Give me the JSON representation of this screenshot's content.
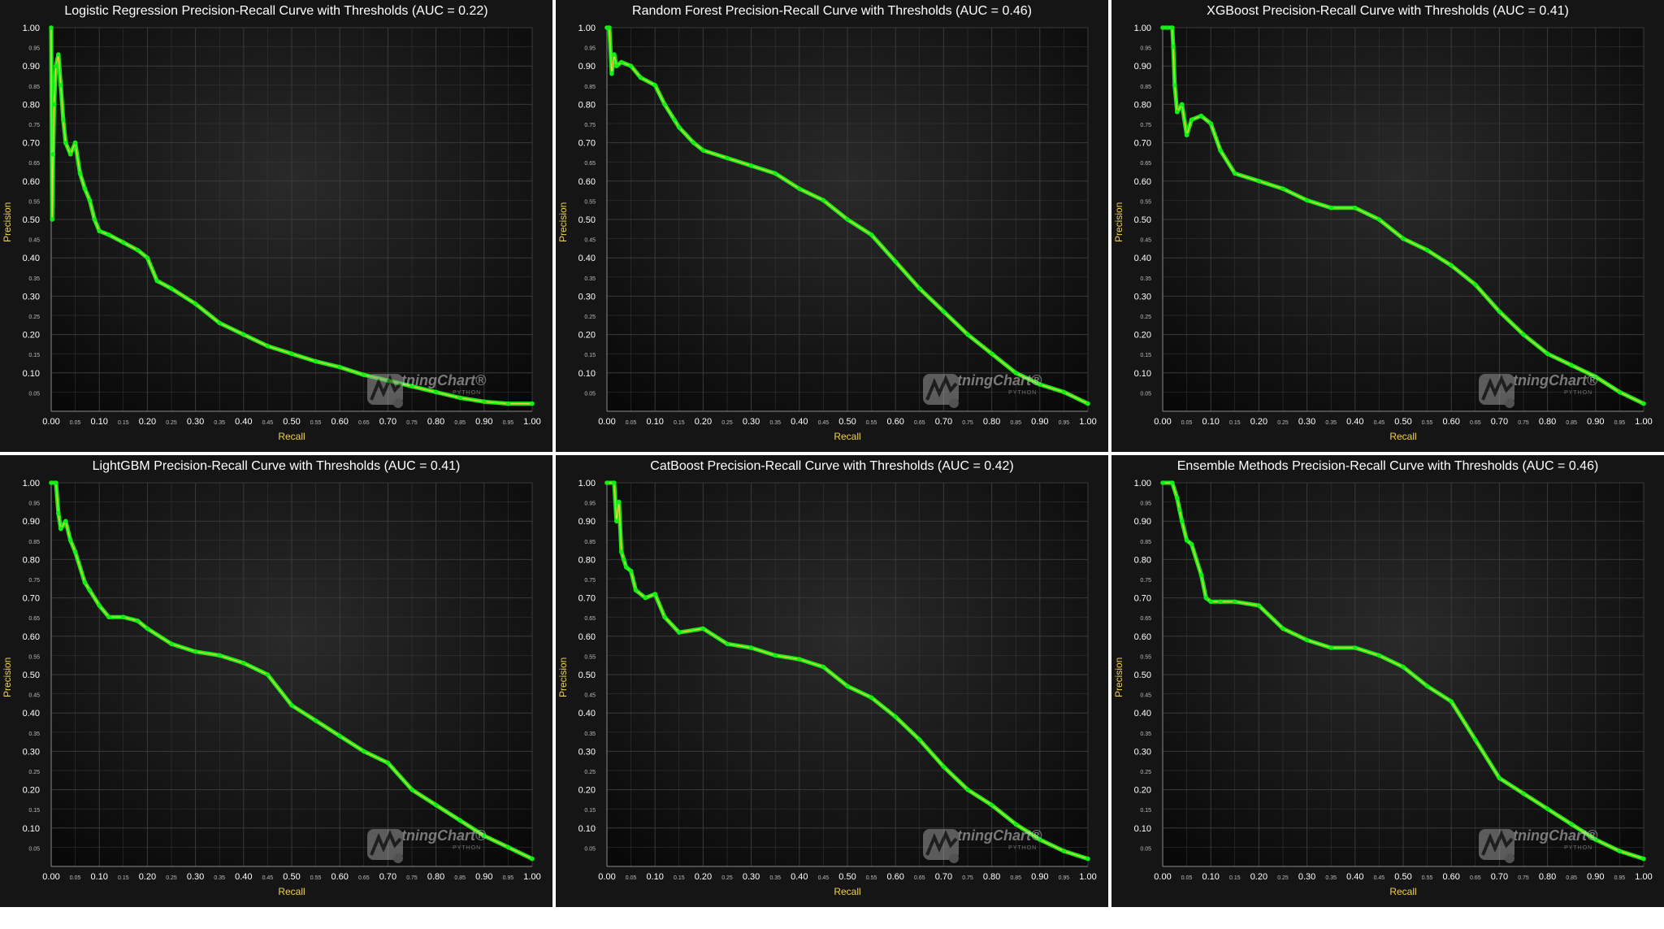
{
  "theme": {
    "background": "#151515",
    "plot_bg": "#0d0d0d",
    "curve_color": "#14ee14",
    "line_color": "#f2d24a",
    "text_color": "#ffffff",
    "axis_color": "#f2d24a"
  },
  "watermark": {
    "text": "LightningChart",
    "mark": "®",
    "sub": "PYTHON",
    "icon": "lightningchart-logo-icon"
  },
  "charts": [
    {
      "title": "Logistic Regression Precision-Recall Curve with Thresholds (AUC = 0.22)",
      "xlabel": "Recall",
      "ylabel": "Precision"
    },
    {
      "title": "Random Forest Precision-Recall Curve with Thresholds (AUC = 0.46)",
      "xlabel": "Recall",
      "ylabel": "Precision"
    },
    {
      "title": "XGBoost Precision-Recall Curve with Thresholds (AUC = 0.41)",
      "xlabel": "Recall",
      "ylabel": "Precision"
    },
    {
      "title": "LightGBM Precision-Recall Curve with Thresholds (AUC = 0.41)",
      "xlabel": "Recall",
      "ylabel": "Precision"
    },
    {
      "title": "CatBoost Precision-Recall Curve with Thresholds (AUC = 0.42)",
      "xlabel": "Recall",
      "ylabel": "Precision"
    },
    {
      "title": "Ensemble Methods Precision-Recall Curve with Thresholds (AUC = 0.46)",
      "xlabel": "Recall",
      "ylabel": "Precision"
    }
  ],
  "chart_data": [
    {
      "type": "line",
      "title": "Logistic Regression Precision-Recall Curve with Thresholds (AUC = 0.22)",
      "xlabel": "Recall",
      "ylabel": "Precision",
      "xlim": [
        0,
        1
      ],
      "ylim": [
        0,
        1
      ],
      "grid": true,
      "xticks": [
        "0.00",
        "0.05",
        "0.10",
        "0.15",
        "0.20",
        "0.25",
        "0.30",
        "0.35",
        "0.40",
        "0.45",
        "0.50",
        "0.55",
        "0.60",
        "0.65",
        "0.70",
        "0.75",
        "0.80",
        "0.85",
        "0.90",
        "0.95",
        "1.00"
      ],
      "yticks": [
        "0.05",
        "0.10",
        "0.15",
        "0.20",
        "0.25",
        "0.30",
        "0.35",
        "0.40",
        "0.45",
        "0.50",
        "0.55",
        "0.60",
        "0.65",
        "0.70",
        "0.75",
        "0.80",
        "0.85",
        "0.90",
        "0.95",
        "1.00"
      ],
      "x": [
        0.0,
        0.002,
        0.004,
        0.006,
        0.01,
        0.015,
        0.02,
        0.025,
        0.03,
        0.04,
        0.05,
        0.06,
        0.07,
        0.08,
        0.09,
        0.1,
        0.12,
        0.15,
        0.18,
        0.2,
        0.22,
        0.25,
        0.3,
        0.35,
        0.4,
        0.45,
        0.5,
        0.55,
        0.6,
        0.65,
        0.7,
        0.75,
        0.8,
        0.85,
        0.9,
        0.95,
        1.0
      ],
      "y": [
        1.0,
        0.5,
        0.67,
        0.8,
        0.9,
        0.93,
        0.85,
        0.76,
        0.7,
        0.67,
        0.7,
        0.62,
        0.58,
        0.55,
        0.5,
        0.47,
        0.46,
        0.44,
        0.42,
        0.4,
        0.34,
        0.32,
        0.28,
        0.23,
        0.2,
        0.17,
        0.15,
        0.13,
        0.115,
        0.095,
        0.08,
        0.065,
        0.05,
        0.035,
        0.025,
        0.02,
        0.02
      ]
    },
    {
      "type": "line",
      "title": "Random Forest Precision-Recall Curve with Thresholds (AUC = 0.46)",
      "xlabel": "Recall",
      "ylabel": "Precision",
      "xlim": [
        0,
        1
      ],
      "ylim": [
        0,
        1
      ],
      "grid": true,
      "xticks": [
        "0.00",
        "0.05",
        "0.10",
        "0.15",
        "0.20",
        "0.25",
        "0.30",
        "0.35",
        "0.40",
        "0.45",
        "0.50",
        "0.55",
        "0.60",
        "0.65",
        "0.70",
        "0.75",
        "0.80",
        "0.85",
        "0.90",
        "0.95",
        "1.00"
      ],
      "yticks": [
        "0.05",
        "0.10",
        "0.15",
        "0.20",
        "0.25",
        "0.30",
        "0.35",
        "0.40",
        "0.45",
        "0.50",
        "0.55",
        "0.60",
        "0.65",
        "0.70",
        "0.75",
        "0.80",
        "0.85",
        "0.90",
        "0.95",
        "1.00"
      ],
      "x": [
        0.0,
        0.005,
        0.01,
        0.015,
        0.02,
        0.03,
        0.05,
        0.07,
        0.1,
        0.12,
        0.14,
        0.15,
        0.18,
        0.2,
        0.25,
        0.3,
        0.35,
        0.4,
        0.45,
        0.5,
        0.55,
        0.6,
        0.65,
        0.7,
        0.75,
        0.8,
        0.85,
        0.9,
        0.95,
        1.0
      ],
      "y": [
        1.0,
        1.0,
        0.88,
        0.93,
        0.9,
        0.91,
        0.9,
        0.87,
        0.85,
        0.8,
        0.76,
        0.74,
        0.7,
        0.68,
        0.66,
        0.64,
        0.62,
        0.58,
        0.55,
        0.5,
        0.46,
        0.39,
        0.32,
        0.26,
        0.2,
        0.15,
        0.1,
        0.07,
        0.05,
        0.02
      ]
    },
    {
      "type": "line",
      "title": "XGBoost Precision-Recall Curve with Thresholds (AUC = 0.41)",
      "xlabel": "Recall",
      "ylabel": "Precision",
      "xlim": [
        0,
        1
      ],
      "ylim": [
        0,
        1
      ],
      "grid": true,
      "xticks": [
        "0.00",
        "0.05",
        "0.10",
        "0.15",
        "0.20",
        "0.25",
        "0.30",
        "0.35",
        "0.40",
        "0.45",
        "0.50",
        "0.55",
        "0.60",
        "0.65",
        "0.70",
        "0.75",
        "0.80",
        "0.85",
        "0.90",
        "0.95",
        "1.00"
      ],
      "yticks": [
        "0.05",
        "0.10",
        "0.15",
        "0.20",
        "0.25",
        "0.30",
        "0.35",
        "0.40",
        "0.45",
        "0.50",
        "0.55",
        "0.60",
        "0.65",
        "0.70",
        "0.75",
        "0.80",
        "0.85",
        "0.90",
        "0.95",
        "1.00"
      ],
      "x": [
        0.0,
        0.01,
        0.02,
        0.022,
        0.025,
        0.03,
        0.04,
        0.05,
        0.06,
        0.08,
        0.1,
        0.12,
        0.15,
        0.2,
        0.25,
        0.3,
        0.35,
        0.4,
        0.45,
        0.5,
        0.55,
        0.6,
        0.65,
        0.7,
        0.75,
        0.8,
        0.85,
        0.9,
        0.95,
        1.0
      ],
      "y": [
        1.0,
        1.0,
        1.0,
        0.95,
        0.85,
        0.78,
        0.8,
        0.72,
        0.76,
        0.77,
        0.75,
        0.68,
        0.62,
        0.6,
        0.58,
        0.55,
        0.53,
        0.53,
        0.5,
        0.45,
        0.42,
        0.38,
        0.33,
        0.26,
        0.2,
        0.15,
        0.12,
        0.09,
        0.05,
        0.02
      ]
    },
    {
      "type": "line",
      "title": "LightGBM Precision-Recall Curve with Thresholds (AUC = 0.41)",
      "xlabel": "Recall",
      "ylabel": "Precision",
      "xlim": [
        0,
        1
      ],
      "ylim": [
        0,
        1
      ],
      "grid": true,
      "xticks": [
        "0.00",
        "0.05",
        "0.10",
        "0.15",
        "0.20",
        "0.25",
        "0.30",
        "0.35",
        "0.40",
        "0.45",
        "0.50",
        "0.55",
        "0.60",
        "0.65",
        "0.70",
        "0.75",
        "0.80",
        "0.85",
        "0.90",
        "0.95",
        "1.00"
      ],
      "yticks": [
        "0.05",
        "0.10",
        "0.15",
        "0.20",
        "0.25",
        "0.30",
        "0.35",
        "0.40",
        "0.45",
        "0.50",
        "0.55",
        "0.60",
        "0.65",
        "0.70",
        "0.75",
        "0.80",
        "0.85",
        "0.90",
        "0.95",
        "1.00"
      ],
      "x": [
        0.0,
        0.01,
        0.015,
        0.02,
        0.03,
        0.04,
        0.05,
        0.07,
        0.08,
        0.1,
        0.12,
        0.15,
        0.18,
        0.2,
        0.25,
        0.3,
        0.35,
        0.4,
        0.45,
        0.5,
        0.55,
        0.6,
        0.65,
        0.7,
        0.75,
        0.8,
        0.85,
        0.9,
        0.95,
        1.0
      ],
      "y": [
        1.0,
        1.0,
        0.92,
        0.88,
        0.9,
        0.85,
        0.82,
        0.74,
        0.72,
        0.68,
        0.65,
        0.65,
        0.64,
        0.62,
        0.58,
        0.56,
        0.55,
        0.53,
        0.5,
        0.42,
        0.38,
        0.34,
        0.3,
        0.27,
        0.2,
        0.16,
        0.12,
        0.08,
        0.05,
        0.02
      ]
    },
    {
      "type": "line",
      "title": "CatBoost Precision-Recall Curve with Thresholds (AUC = 0.42)",
      "xlabel": "Recall",
      "ylabel": "Precision",
      "xlim": [
        0,
        1
      ],
      "ylim": [
        0,
        1
      ],
      "grid": true,
      "xticks": [
        "0.00",
        "0.05",
        "0.10",
        "0.15",
        "0.20",
        "0.25",
        "0.30",
        "0.35",
        "0.40",
        "0.45",
        "0.50",
        "0.55",
        "0.60",
        "0.65",
        "0.70",
        "0.75",
        "0.80",
        "0.85",
        "0.90",
        "0.95",
        "1.00"
      ],
      "yticks": [
        "0.05",
        "0.10",
        "0.15",
        "0.20",
        "0.25",
        "0.30",
        "0.35",
        "0.40",
        "0.45",
        "0.50",
        "0.55",
        "0.60",
        "0.65",
        "0.70",
        "0.75",
        "0.80",
        "0.85",
        "0.90",
        "0.95",
        "1.00"
      ],
      "x": [
        0.0,
        0.015,
        0.02,
        0.025,
        0.03,
        0.035,
        0.04,
        0.05,
        0.06,
        0.08,
        0.1,
        0.12,
        0.15,
        0.2,
        0.25,
        0.3,
        0.35,
        0.4,
        0.45,
        0.5,
        0.55,
        0.6,
        0.65,
        0.7,
        0.75,
        0.8,
        0.85,
        0.9,
        0.95,
        1.0
      ],
      "y": [
        1.0,
        1.0,
        0.9,
        0.95,
        0.82,
        0.8,
        0.78,
        0.77,
        0.72,
        0.7,
        0.71,
        0.65,
        0.61,
        0.62,
        0.58,
        0.57,
        0.55,
        0.54,
        0.52,
        0.47,
        0.44,
        0.39,
        0.33,
        0.26,
        0.2,
        0.16,
        0.11,
        0.07,
        0.04,
        0.02
      ]
    },
    {
      "type": "line",
      "title": "Ensemble Methods Precision-Recall Curve with Thresholds (AUC = 0.46)",
      "xlabel": "Recall",
      "ylabel": "Precision",
      "xlim": [
        0,
        1
      ],
      "ylim": [
        0,
        1
      ],
      "grid": true,
      "xticks": [
        "0.00",
        "0.05",
        "0.10",
        "0.15",
        "0.20",
        "0.25",
        "0.30",
        "0.35",
        "0.40",
        "0.45",
        "0.50",
        "0.55",
        "0.60",
        "0.65",
        "0.70",
        "0.75",
        "0.80",
        "0.85",
        "0.90",
        "0.95",
        "1.00"
      ],
      "yticks": [
        "0.05",
        "0.10",
        "0.15",
        "0.20",
        "0.25",
        "0.30",
        "0.35",
        "0.40",
        "0.45",
        "0.50",
        "0.55",
        "0.60",
        "0.65",
        "0.70",
        "0.75",
        "0.80",
        "0.85",
        "0.90",
        "0.95",
        "1.00"
      ],
      "x": [
        0.0,
        0.02,
        0.03,
        0.035,
        0.04,
        0.05,
        0.06,
        0.08,
        0.09,
        0.1,
        0.12,
        0.15,
        0.2,
        0.25,
        0.3,
        0.35,
        0.4,
        0.45,
        0.5,
        0.55,
        0.6,
        0.65,
        0.7,
        0.75,
        0.8,
        0.85,
        0.9,
        0.95,
        1.0
      ],
      "y": [
        1.0,
        1.0,
        0.96,
        0.93,
        0.9,
        0.85,
        0.84,
        0.76,
        0.7,
        0.69,
        0.69,
        0.69,
        0.68,
        0.62,
        0.59,
        0.57,
        0.57,
        0.55,
        0.52,
        0.47,
        0.43,
        0.33,
        0.23,
        0.19,
        0.15,
        0.11,
        0.07,
        0.04,
        0.02
      ]
    }
  ]
}
